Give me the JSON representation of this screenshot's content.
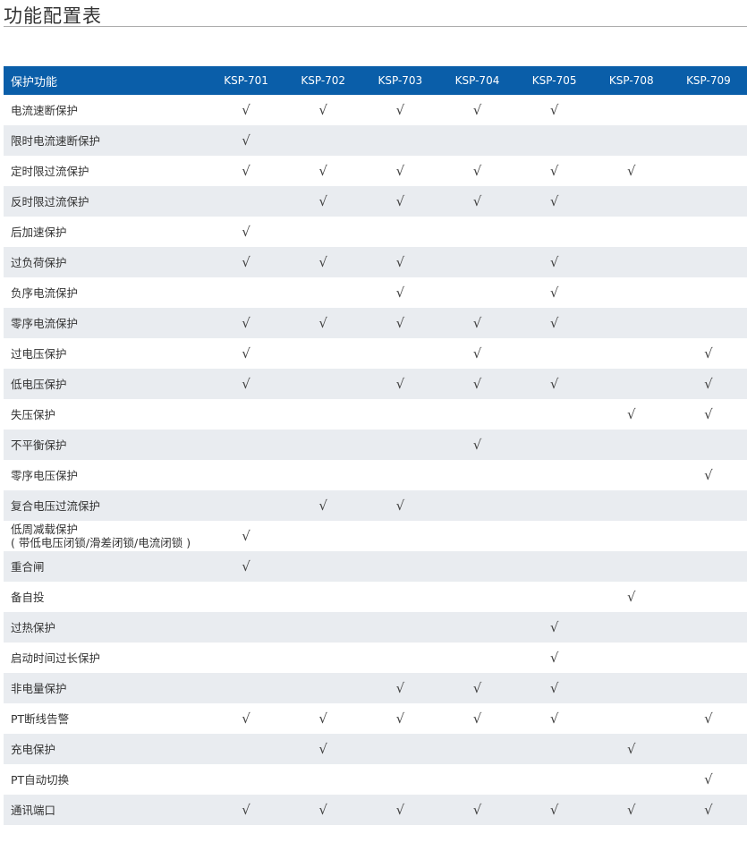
{
  "title": "功能配置表",
  "header": {
    "name": "保护功能",
    "models": [
      "KSP-701",
      "KSP-702",
      "KSP-703",
      "KSP-704",
      "KSP-705",
      "KSP-708",
      "KSP-709"
    ]
  },
  "check_mark": "√",
  "rows": [
    {
      "name": "电流速断保护",
      "checks": [
        1,
        1,
        1,
        1,
        1,
        0,
        0
      ]
    },
    {
      "name": "限时电流速断保护",
      "checks": [
        1,
        0,
        0,
        0,
        0,
        0,
        0
      ]
    },
    {
      "name": "定时限过流保护",
      "checks": [
        1,
        1,
        1,
        1,
        1,
        1,
        0
      ]
    },
    {
      "name": "反时限过流保护",
      "checks": [
        0,
        1,
        1,
        1,
        1,
        0,
        0
      ]
    },
    {
      "name": "后加速保护",
      "checks": [
        1,
        0,
        0,
        0,
        0,
        0,
        0
      ]
    },
    {
      "name": "过负荷保护",
      "checks": [
        1,
        1,
        1,
        0,
        1,
        0,
        0
      ]
    },
    {
      "name": "负序电流保护",
      "checks": [
        0,
        0,
        1,
        0,
        1,
        0,
        0
      ]
    },
    {
      "name": "零序电流保护",
      "checks": [
        1,
        1,
        1,
        1,
        1,
        0,
        0
      ]
    },
    {
      "name": "过电压保护",
      "checks": [
        1,
        0,
        0,
        1,
        0,
        0,
        1
      ]
    },
    {
      "name": "低电压保护",
      "checks": [
        1,
        0,
        1,
        1,
        1,
        0,
        1
      ]
    },
    {
      "name": "失压保护",
      "checks": [
        0,
        0,
        0,
        0,
        0,
        1,
        1
      ]
    },
    {
      "name": "不平衡保护",
      "checks": [
        0,
        0,
        0,
        1,
        0,
        0,
        0
      ]
    },
    {
      "name": "零序电压保护",
      "checks": [
        0,
        0,
        0,
        0,
        0,
        0,
        1
      ]
    },
    {
      "name": "复合电压过流保护",
      "checks": [
        0,
        1,
        1,
        0,
        0,
        0,
        0
      ]
    },
    {
      "name": "低周减载保护",
      "note": "( 带低电压闭锁/滑差闭锁/电流闭锁 )",
      "checks": [
        1,
        0,
        0,
        0,
        0,
        0,
        0
      ]
    },
    {
      "name": "重合闸",
      "checks": [
        1,
        0,
        0,
        0,
        0,
        0,
        0
      ]
    },
    {
      "name": "备自投",
      "checks": [
        0,
        0,
        0,
        0,
        0,
        1,
        0
      ]
    },
    {
      "name": "过热保护",
      "checks": [
        0,
        0,
        0,
        0,
        1,
        0,
        0
      ]
    },
    {
      "name": "启动时间过长保护",
      "checks": [
        0,
        0,
        0,
        0,
        1,
        0,
        0
      ]
    },
    {
      "name": "非电量保护",
      "checks": [
        0,
        0,
        1,
        1,
        1,
        0,
        0
      ]
    },
    {
      "name": "PT断线告警",
      "checks": [
        1,
        1,
        1,
        1,
        1,
        0,
        1
      ]
    },
    {
      "name": "充电保护",
      "checks": [
        0,
        1,
        0,
        0,
        0,
        1,
        0
      ]
    },
    {
      "name": "PT自动切换",
      "checks": [
        0,
        0,
        0,
        0,
        0,
        0,
        1
      ]
    },
    {
      "name": "通讯端口",
      "checks": [
        1,
        1,
        1,
        1,
        1,
        1,
        1
      ]
    }
  ]
}
